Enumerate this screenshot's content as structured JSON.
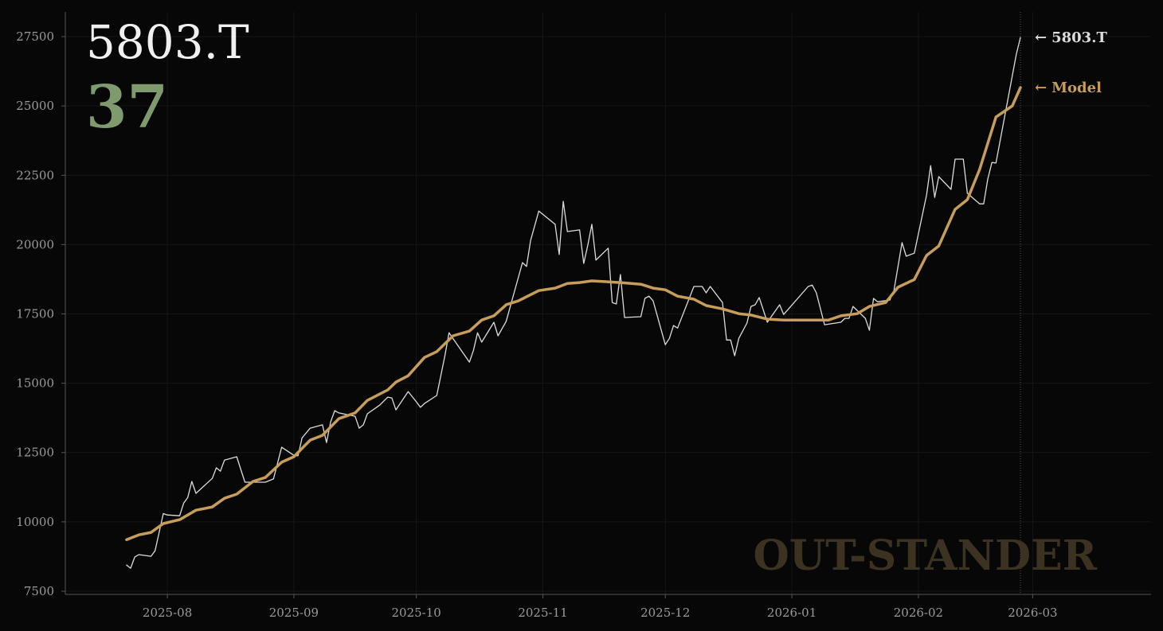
{
  "chart_data": {
    "type": "line",
    "title": "5803.T",
    "score": 37,
    "watermark": "OUT-STANDER",
    "end_label_prefix": "←",
    "xlim": [
      "2025-07-07",
      "2026-03-30"
    ],
    "xticks": [
      "2025-08",
      "2025-09",
      "2025-10",
      "2025-11",
      "2025-12",
      "2026-01",
      "2026-02",
      "2026-03"
    ],
    "ylim": [
      7385,
      28390
    ],
    "yticks": [
      7500,
      10000,
      12500,
      15000,
      17500,
      20000,
      22500,
      25000,
      27500
    ],
    "grid": true,
    "series": [
      {
        "name": "5803.T",
        "color": "#dcdcdc",
        "width": 1.3,
        "x": [
          "2025-07-22",
          "2025-07-23",
          "2025-07-24",
          "2025-07-25",
          "2025-07-28",
          "2025-07-29",
          "2025-07-31",
          "2025-08-01",
          "2025-08-04",
          "2025-08-05",
          "2025-08-06",
          "2025-08-07",
          "2025-08-08",
          "2025-08-12",
          "2025-08-13",
          "2025-08-14",
          "2025-08-15",
          "2025-08-18",
          "2025-08-19",
          "2025-08-20",
          "2025-08-25",
          "2025-08-27",
          "2025-08-29",
          "2025-09-01",
          "2025-09-02",
          "2025-09-03",
          "2025-09-05",
          "2025-09-08",
          "2025-09-09",
          "2025-09-10",
          "2025-09-11",
          "2025-09-12",
          "2025-09-16",
          "2025-09-17",
          "2025-09-18",
          "2025-09-19",
          "2025-09-22",
          "2025-09-24",
          "2025-09-25",
          "2025-09-26",
          "2025-09-29",
          "2025-10-01",
          "2025-10-02",
          "2025-10-03",
          "2025-10-06",
          "2025-10-08",
          "2025-10-09",
          "2025-10-14",
          "2025-10-15",
          "2025-10-16",
          "2025-10-17",
          "2025-10-20",
          "2025-10-21",
          "2025-10-23",
          "2025-10-27",
          "2025-10-28",
          "2025-10-29",
          "2025-10-31",
          "2025-11-04",
          "2025-11-05",
          "2025-11-06",
          "2025-11-07",
          "2025-11-10",
          "2025-11-11",
          "2025-11-12",
          "2025-11-13",
          "2025-11-14",
          "2025-11-17",
          "2025-11-18",
          "2025-11-19",
          "2025-11-20",
          "2025-11-21",
          "2025-11-25",
          "2025-11-26",
          "2025-11-27",
          "2025-11-28",
          "2025-12-01",
          "2025-12-02",
          "2025-12-03",
          "2025-12-04",
          "2025-12-08",
          "2025-12-10",
          "2025-12-11",
          "2025-12-12",
          "2025-12-15",
          "2025-12-16",
          "2025-12-17",
          "2025-12-18",
          "2025-12-19",
          "2025-12-21",
          "2025-12-22",
          "2025-12-23",
          "2025-12-24",
          "2025-12-26",
          "2025-12-29",
          "2025-12-30",
          "2026-01-05",
          "2026-01-06",
          "2026-01-07",
          "2026-01-09",
          "2026-01-13",
          "2026-01-14",
          "2026-01-15",
          "2026-01-16",
          "2026-01-19",
          "2026-01-20",
          "2026-01-21",
          "2026-01-22",
          "2026-01-25",
          "2026-01-26",
          "2026-01-28",
          "2026-01-29",
          "2026-01-31",
          "2026-02-03",
          "2026-02-04",
          "2026-02-05",
          "2026-02-06",
          "2026-02-09",
          "2026-02-10",
          "2026-02-12",
          "2026-02-13",
          "2026-02-16",
          "2026-02-17",
          "2026-02-18",
          "2026-02-19",
          "2026-02-20",
          "2026-02-25",
          "2026-02-26"
        ],
        "values": [
          8440,
          8330,
          8730,
          8820,
          8760,
          8960,
          10300,
          10250,
          10220,
          10680,
          10880,
          11460,
          11030,
          11570,
          11950,
          11830,
          12230,
          12350,
          11890,
          11430,
          11430,
          11550,
          12690,
          12400,
          12380,
          13030,
          13380,
          13500,
          12860,
          13610,
          14010,
          13930,
          13810,
          13380,
          13500,
          13900,
          14210,
          14500,
          14470,
          14040,
          14700,
          14330,
          14130,
          14270,
          14560,
          15990,
          16820,
          15760,
          16190,
          16820,
          16480,
          17200,
          16710,
          17230,
          19350,
          19210,
          20150,
          21210,
          20730,
          19640,
          21560,
          20470,
          20530,
          19320,
          19980,
          20730,
          19440,
          19870,
          17910,
          17860,
          18920,
          17370,
          17400,
          18060,
          18140,
          17970,
          16390,
          16620,
          17080,
          16990,
          18490,
          18490,
          18260,
          18490,
          17910,
          16560,
          16560,
          15990,
          16620,
          17170,
          17770,
          17830,
          18090,
          17200,
          17830,
          17480,
          18490,
          18540,
          18260,
          17110,
          17200,
          17340,
          17340,
          17770,
          17340,
          16910,
          18060,
          17940,
          18000,
          18340,
          20070,
          19580,
          19690,
          21790,
          22850,
          21700,
          22450,
          21990,
          23080,
          23080,
          21850,
          21470,
          21470,
          22360,
          22960,
          22940,
          26870,
          27470
        ]
      },
      {
        "name": "Model",
        "color": "#c79d5a",
        "width": 3.5,
        "x": [
          "2025-07-22",
          "2025-07-25",
          "2025-07-28",
          "2025-07-31",
          "2025-08-04",
          "2025-08-08",
          "2025-08-12",
          "2025-08-15",
          "2025-08-18",
          "2025-08-22",
          "2025-08-25",
          "2025-08-29",
          "2025-09-01",
          "2025-09-05",
          "2025-09-08",
          "2025-09-12",
          "2025-09-16",
          "2025-09-19",
          "2025-09-24",
          "2025-09-26",
          "2025-09-29",
          "2025-10-03",
          "2025-10-06",
          "2025-10-10",
          "2025-10-14",
          "2025-10-17",
          "2025-10-20",
          "2025-10-23",
          "2025-10-26",
          "2025-10-31",
          "2025-11-04",
          "2025-11-07",
          "2025-11-10",
          "2025-11-13",
          "2025-11-20",
          "2025-11-25",
          "2025-11-28",
          "2025-12-01",
          "2025-12-04",
          "2025-12-08",
          "2025-12-11",
          "2025-12-15",
          "2025-12-19",
          "2025-12-22",
          "2025-12-26",
          "2025-12-30",
          "2026-01-06",
          "2026-01-10",
          "2026-01-13",
          "2026-01-17",
          "2026-01-20",
          "2026-01-24",
          "2026-01-27",
          "2026-01-31",
          "2026-02-03",
          "2026-02-06",
          "2026-02-10",
          "2026-02-13",
          "2026-02-16",
          "2026-02-20",
          "2026-02-24",
          "2026-02-26"
        ],
        "values": [
          9360,
          9530,
          9620,
          9940,
          10080,
          10420,
          10540,
          10850,
          11000,
          11460,
          11600,
          12150,
          12350,
          12950,
          13120,
          13720,
          13930,
          14380,
          14760,
          15040,
          15270,
          15930,
          16140,
          16710,
          16880,
          17280,
          17430,
          17830,
          17970,
          18340,
          18430,
          18600,
          18630,
          18690,
          18630,
          18570,
          18430,
          18370,
          18140,
          18030,
          17800,
          17680,
          17510,
          17460,
          17310,
          17280,
          17280,
          17280,
          17430,
          17510,
          17770,
          17910,
          18460,
          18740,
          19610,
          19950,
          21270,
          21620,
          22710,
          24600,
          25000,
          25660
        ]
      }
    ]
  }
}
